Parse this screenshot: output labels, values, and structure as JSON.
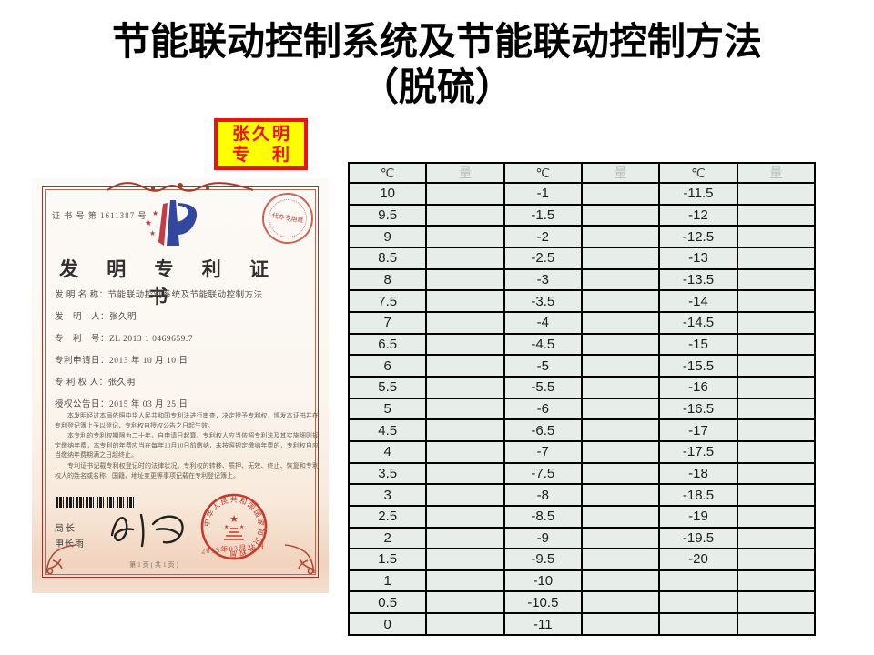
{
  "slide": {
    "title_line1": "节能联动控制系统及节能联动控制方法",
    "title_line2": "（脱硫）"
  },
  "badge": {
    "line1": "张久明",
    "line2": "专　利"
  },
  "certificate": {
    "cert_no": "证 书 号 第 1611387 号",
    "title": "发 明 专 利 证 书",
    "stamp_text": "代办专用章",
    "fields": [
      "发 明 名 称：节能联动控制系统及节能联动控制方法",
      "发　明　人：张久明",
      "专　利　号：ZL 2013 1 0469659.7",
      "专利申请日：2013 年 10 月 10 日",
      "专 利 权 人：张久明",
      "授权公告日：2015 年 03 月 25 日"
    ],
    "body_paragraphs": [
      "本发明经过本局依照中华人民共和国专利法进行审查，决定授予专利权，颁发本证书并在专利登记簿上予以登记，专利权自授权公告之日起生效。",
      "本专利的专利权期限为二十年，自申请日起算。专利权人应当依照专利法及其实施细则规定缴纳年费，本专利的年费应当在每年10月10日前缴纳，未按照规定缴纳年费的，专利权自应当缴纳年费期满之日起终止。",
      "专利证书记载专利权登记时的法律状况。专利权的转移、质押、无效、终止、恢复和专利权人的姓名或名称、国籍、地址变更等事项记载在专利登记簿上。"
    ],
    "director_label": "局长",
    "director_name": "申长雨",
    "seal_ring_text": "中华人民共和国国家知识产权局",
    "seal_date": "2015年03月25日",
    "page_footer": "第1页(共1页)"
  },
  "table": {
    "header": [
      "℃",
      "量",
      "℃",
      "量",
      "℃",
      "量"
    ],
    "rows": [
      [
        "10",
        "",
        "-1",
        "",
        "-11.5",
        ""
      ],
      [
        "9.5",
        "",
        "-1.5",
        "",
        "-12",
        ""
      ],
      [
        "9",
        "",
        "-2",
        "",
        "-12.5",
        ""
      ],
      [
        "8.5",
        "",
        "-2.5",
        "",
        "-13",
        ""
      ],
      [
        "8",
        "",
        "-3",
        "",
        "-13.5",
        ""
      ],
      [
        "7.5",
        "",
        "-3.5",
        "",
        "-14",
        ""
      ],
      [
        "7",
        "",
        "-4",
        "",
        "-14.5",
        ""
      ],
      [
        "6.5",
        "",
        "-4.5",
        "",
        "-15",
        ""
      ],
      [
        "6",
        "",
        "-5",
        "",
        "-15.5",
        ""
      ],
      [
        "5.5",
        "",
        "-5.5",
        "",
        "-16",
        ""
      ],
      [
        "5",
        "",
        "-6",
        "",
        "-16.5",
        ""
      ],
      [
        "4.5",
        "",
        "-6.5",
        "",
        "-17",
        ""
      ],
      [
        "4",
        "",
        "-7",
        "",
        "-17.5",
        ""
      ],
      [
        "3.5",
        "",
        "-7.5",
        "",
        "-18",
        ""
      ],
      [
        "3",
        "",
        "-8",
        "",
        "-18.5",
        ""
      ],
      [
        "2.5",
        "",
        "-8.5",
        "",
        "-19",
        ""
      ],
      [
        "2",
        "",
        "-9",
        "",
        "-19.5",
        ""
      ],
      [
        "1.5",
        "",
        "-9.5",
        "",
        "-20",
        ""
      ],
      [
        "1",
        "",
        "-10",
        "",
        "",
        ""
      ],
      [
        "0.5",
        "",
        "-10.5",
        "",
        "",
        ""
      ],
      [
        "0",
        "",
        "-11",
        "",
        "",
        ""
      ]
    ]
  },
  "colors": {
    "badge_bg": "#ffff00",
    "badge_red": "#ee1111",
    "table_cell_bg": "#e7ede8",
    "table_border": "#000000",
    "frame_red": "#96382c",
    "seal_red": "#c6392b",
    "logo_blue": "#34479e",
    "logo_red": "#c23b45"
  }
}
